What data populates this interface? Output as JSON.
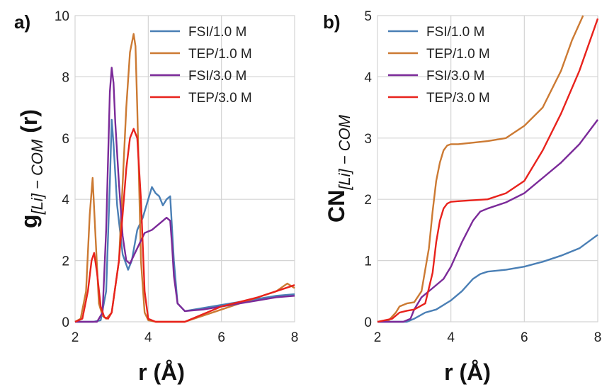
{
  "chart_data": [
    {
      "type": "line",
      "panel_label": "a)",
      "ylabel": "g",
      "ylabel_sub": "[Li] − COM",
      "ylabel_suffix": " (r)",
      "xlabel": "r (Å)",
      "xlim": [
        2,
        8
      ],
      "ylim": [
        0,
        10
      ],
      "xticks": [
        "2",
        "4",
        "6",
        "8"
      ],
      "yticks": [
        "0",
        "2",
        "4",
        "6",
        "8",
        "10"
      ],
      "grid": true,
      "legend_position": "top-right",
      "series": [
        {
          "name": "FSI/1.0 M",
          "color": "#4a7fb5",
          "x": [
            2.0,
            2.5,
            2.7,
            2.85,
            2.95,
            3.0,
            3.05,
            3.15,
            3.3,
            3.45,
            3.55,
            3.7,
            3.85,
            4.0,
            4.1,
            4.2,
            4.3,
            4.4,
            4.5,
            4.6,
            4.7,
            4.8,
            5.0,
            5.5,
            6.0,
            6.5,
            7.0,
            7.5,
            8.0
          ],
          "y": [
            0,
            0,
            0.05,
            1.0,
            4.5,
            6.6,
            5.8,
            3.8,
            2.2,
            1.7,
            2.0,
            3.0,
            3.4,
            4.0,
            4.4,
            4.2,
            4.1,
            3.8,
            4.0,
            4.1,
            2.0,
            0.6,
            0.35,
            0.45,
            0.55,
            0.65,
            0.75,
            0.85,
            0.9
          ]
        },
        {
          "name": "TEP/1.0 M",
          "color": "#cc7a33",
          "x": [
            2.0,
            2.15,
            2.3,
            2.4,
            2.48,
            2.55,
            2.65,
            2.75,
            2.85,
            3.0,
            3.2,
            3.4,
            3.5,
            3.6,
            3.65,
            3.7,
            3.8,
            3.9,
            4.0,
            4.2,
            5.0,
            6.0,
            7.0,
            7.5,
            7.8,
            8.0
          ],
          "y": [
            0,
            0.1,
            1.0,
            3.5,
            4.7,
            3.0,
            0.6,
            0.2,
            0.1,
            0.3,
            2.0,
            7.0,
            8.8,
            9.4,
            9.0,
            7.0,
            2.0,
            0.3,
            0.05,
            0,
            0,
            0.4,
            0.8,
            1.0,
            1.25,
            1.1
          ]
        },
        {
          "name": "FSI/3.0 M",
          "color": "#7b2a99",
          "x": [
            2.0,
            2.6,
            2.75,
            2.85,
            2.95,
            3.0,
            3.05,
            3.1,
            3.2,
            3.3,
            3.4,
            3.5,
            3.7,
            3.9,
            4.1,
            4.3,
            4.5,
            4.6,
            4.65,
            4.7,
            4.8,
            5.0,
            5.5,
            6.0,
            6.5,
            7.0,
            7.5,
            8.0
          ],
          "y": [
            0,
            0,
            0.3,
            3.0,
            7.5,
            8.3,
            7.8,
            6.5,
            4.5,
            2.8,
            2.0,
            1.9,
            2.4,
            2.9,
            3.0,
            3.2,
            3.4,
            3.3,
            2.5,
            1.5,
            0.6,
            0.35,
            0.4,
            0.5,
            0.6,
            0.7,
            0.8,
            0.85
          ]
        },
        {
          "name": "TEP/3.0 M",
          "color": "#e8221c",
          "x": [
            2.0,
            2.2,
            2.35,
            2.45,
            2.52,
            2.6,
            2.7,
            2.8,
            2.9,
            3.0,
            3.2,
            3.4,
            3.5,
            3.6,
            3.7,
            3.8,
            3.9,
            4.0,
            4.2,
            5.0,
            6.0,
            7.0,
            7.5,
            8.0
          ],
          "y": [
            0,
            0.1,
            1.0,
            2.0,
            2.25,
            1.6,
            0.5,
            0.15,
            0.1,
            0.3,
            2.0,
            5.0,
            6.0,
            6.3,
            6.0,
            4.0,
            1.0,
            0.1,
            0,
            0,
            0.5,
            0.8,
            1.0,
            1.2
          ]
        }
      ]
    },
    {
      "type": "line",
      "panel_label": "b)",
      "ylabel": "CN",
      "ylabel_sub": "[Li] − COM",
      "xlabel": "r (Å)",
      "xlim": [
        2,
        8
      ],
      "ylim": [
        0,
        5
      ],
      "xticks": [
        "2",
        "4",
        "6",
        "8"
      ],
      "yticks": [
        "0",
        "1",
        "2",
        "3",
        "4",
        "5"
      ],
      "grid": true,
      "legend_position": "top-left",
      "series": [
        {
          "name": "FSI/1.0 M",
          "color": "#4a7fb5",
          "x": [
            2.0,
            2.8,
            3.0,
            3.3,
            3.6,
            4.0,
            4.3,
            4.6,
            4.8,
            5.0,
            5.5,
            6.0,
            6.5,
            7.0,
            7.5,
            8.0
          ],
          "y": [
            0,
            0,
            0.05,
            0.15,
            0.2,
            0.35,
            0.5,
            0.7,
            0.78,
            0.82,
            0.85,
            0.9,
            0.98,
            1.08,
            1.2,
            1.42
          ]
        },
        {
          "name": "TEP/1.0 M",
          "color": "#cc7a33",
          "x": [
            2.0,
            2.3,
            2.5,
            2.6,
            2.8,
            3.0,
            3.2,
            3.4,
            3.5,
            3.6,
            3.7,
            3.8,
            3.9,
            4.0,
            4.2,
            5.0,
            5.5,
            6.0,
            6.5,
            7.0,
            7.3,
            7.6
          ],
          "y": [
            0,
            0.02,
            0.15,
            0.25,
            0.3,
            0.32,
            0.5,
            1.2,
            1.8,
            2.3,
            2.6,
            2.8,
            2.88,
            2.9,
            2.9,
            2.95,
            3.0,
            3.2,
            3.5,
            4.1,
            4.6,
            5.1
          ]
        },
        {
          "name": "FSI/3.0 M",
          "color": "#7b2a99",
          "x": [
            2.0,
            2.7,
            2.9,
            3.0,
            3.2,
            3.5,
            3.8,
            4.0,
            4.3,
            4.6,
            4.8,
            5.0,
            5.5,
            6.0,
            6.5,
            7.0,
            7.5,
            8.0
          ],
          "y": [
            0,
            0,
            0.05,
            0.2,
            0.4,
            0.55,
            0.7,
            0.9,
            1.3,
            1.65,
            1.8,
            1.85,
            1.95,
            2.1,
            2.35,
            2.6,
            2.9,
            3.3
          ]
        },
        {
          "name": "TEP/3.0 M",
          "color": "#e8221c",
          "x": [
            2.0,
            2.4,
            2.6,
            2.8,
            3.0,
            3.3,
            3.5,
            3.6,
            3.7,
            3.8,
            3.9,
            4.0,
            4.2,
            5.0,
            5.5,
            6.0,
            6.5,
            7.0,
            7.5,
            8.0
          ],
          "y": [
            0,
            0.05,
            0.15,
            0.18,
            0.2,
            0.3,
            0.8,
            1.3,
            1.65,
            1.85,
            1.93,
            1.96,
            1.97,
            2.0,
            2.1,
            2.3,
            2.8,
            3.4,
            4.1,
            4.95
          ]
        }
      ]
    }
  ]
}
